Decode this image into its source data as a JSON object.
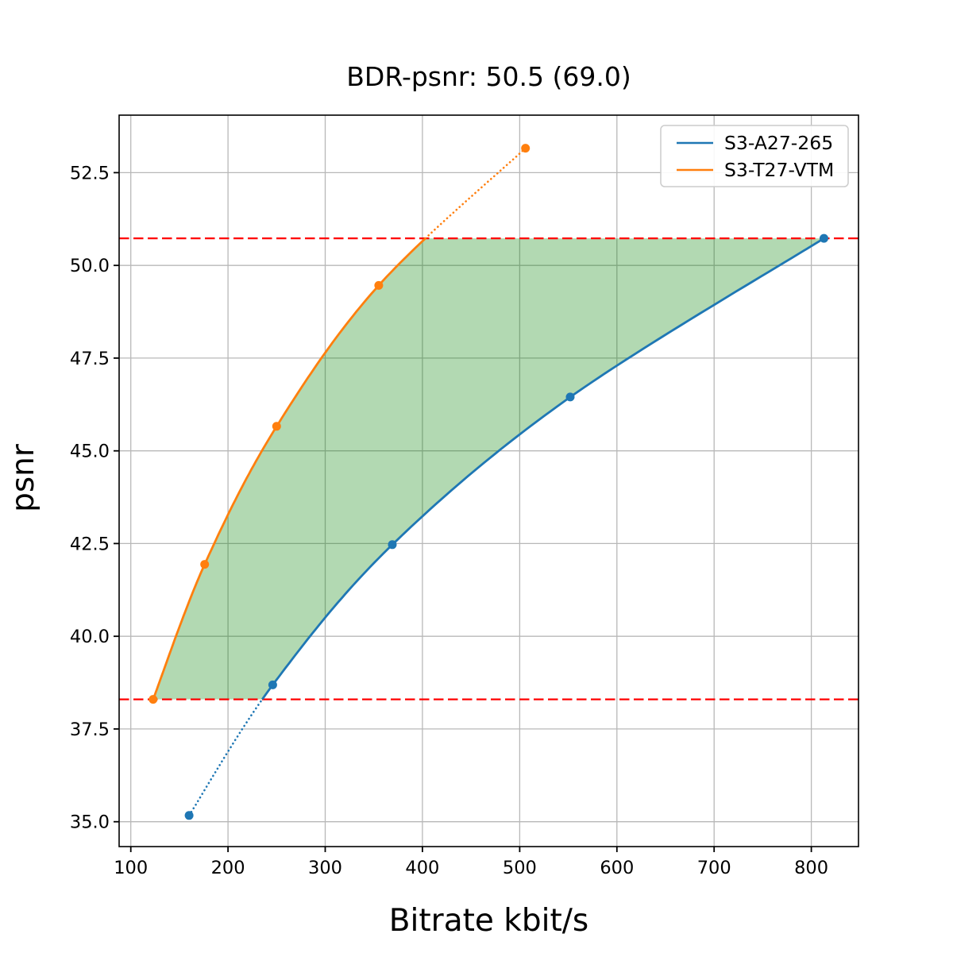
{
  "chart_data": {
    "type": "line",
    "title": "BDR-psnr: 50.5 (69.0)",
    "xlabel": "Bitrate kbit/s",
    "ylabel": "psnr",
    "xlim": [
      88,
      848.5
    ],
    "ylim": [
      34.33,
      54.05
    ],
    "x_ticks": [
      100,
      200,
      300,
      400,
      500,
      600,
      700,
      800
    ],
    "y_ticks": [
      35.0,
      37.5,
      40.0,
      42.5,
      45.0,
      47.5,
      50.0,
      52.5
    ],
    "grid": true,
    "grid_color": "#b8b8b8",
    "legend_position": "upper right",
    "series": [
      {
        "name": "S3-A27-265",
        "color": "#1f77b4",
        "points": [
          [
            160,
            35.17
          ],
          [
            246,
            38.69
          ],
          [
            369,
            42.47
          ],
          [
            552,
            46.45
          ],
          [
            813,
            50.73
          ]
        ],
        "extrapolated_side": "below"
      },
      {
        "name": "S3-T27-VTM",
        "color": "#ff7f0e",
        "points": [
          [
            123,
            38.3
          ],
          [
            176,
            41.94
          ],
          [
            250,
            45.66
          ],
          [
            355,
            49.46
          ],
          [
            506,
            53.16
          ]
        ],
        "extrapolated_side": "above"
      }
    ],
    "integration_bounds": {
      "lower_psnr": 38.3,
      "upper_psnr": 50.73,
      "line_color": "#ff0000",
      "line_style": "dashed"
    },
    "shaded_region": {
      "color": "#008000",
      "opacity": 0.3,
      "description": "BD-rate area between curves within integration bounds"
    }
  }
}
